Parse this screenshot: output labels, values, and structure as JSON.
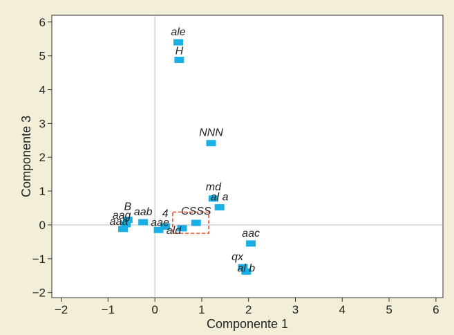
{
  "chart_data": {
    "type": "scatter",
    "title": "",
    "xlabel": "Componente 1",
    "ylabel": "Componente 3",
    "xlim": [
      -2.2,
      6.15
    ],
    "ylim": [
      -2.15,
      6.2
    ],
    "xticks": [
      -2,
      -1,
      0,
      1,
      2,
      3,
      4,
      5,
      6
    ],
    "yticks": [
      -2,
      -1,
      0,
      1,
      2,
      3,
      4,
      5,
      6
    ],
    "grid": false,
    "reference_lines": {
      "x": 0,
      "y": 0
    },
    "highlight_box": {
      "x": [
        0.38,
        1.15
      ],
      "y": [
        -0.25,
        0.38
      ],
      "color": "#e0502a",
      "style": "dashed"
    },
    "colors": {
      "marker": "#1ab0e6",
      "background": "#f3eed7",
      "plot_area": "#ffffff",
      "reference": "#bbbbbb"
    },
    "points": [
      {
        "label": "ale",
        "x": 0.5,
        "y": 5.4
      },
      {
        "label": "H",
        "x": 0.52,
        "y": 4.88
      },
      {
        "label": "NNN",
        "x": 1.2,
        "y": 2.42
      },
      {
        "label": "md",
        "x": 1.25,
        "y": 0.78
      },
      {
        "label": "al a",
        "x": 1.38,
        "y": 0.52
      },
      {
        "label": "B",
        "x": -0.58,
        "y": 0.15
      },
      {
        "label": "aag",
        "x": -0.62,
        "y": 0.02
      },
      {
        "label": "aaa",
        "x": -0.68,
        "y": -0.12
      },
      {
        "label": "aab",
        "x": -0.25,
        "y": 0.08
      },
      {
        "label": "4",
        "x": 0.22,
        "y": -0.05
      },
      {
        "label": "aae",
        "x": 0.08,
        "y": -0.15
      },
      {
        "label": "CSSS",
        "x": 0.88,
        "y": 0.06
      },
      {
        "label": "ald",
        "x": 0.58,
        "y": -0.1
      },
      {
        "label": "aac",
        "x": 2.05,
        "y": -0.55
      },
      {
        "label": "qx",
        "x": 1.88,
        "y": -1.25
      },
      {
        "label": "al b",
        "x": 1.95,
        "y": -1.38
      }
    ]
  }
}
